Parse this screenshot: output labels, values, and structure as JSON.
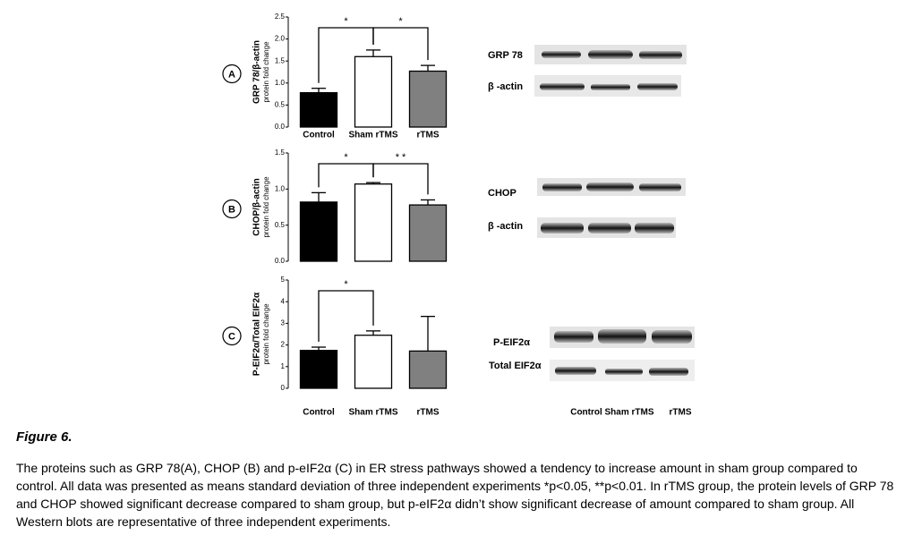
{
  "chart_data": [
    {
      "type": "bar",
      "panel": "A",
      "ylabel": "GRP 78/β-actin",
      "ylabel_sub": "protein fold change",
      "categories": [
        "Control",
        "Sham rTMS",
        "rTMS"
      ],
      "values": [
        0.78,
        1.6,
        1.27
      ],
      "errors": [
        0.1,
        0.15,
        0.13
      ],
      "colors": [
        "#000000",
        "#ffffff",
        "#808080"
      ],
      "ylim": [
        0,
        2.5
      ],
      "yticks": [
        {
          "value": 0,
          "label": "0.0"
        },
        0.5,
        {
          "value": 1,
          "label": "1.0"
        },
        1.5,
        {
          "value": 2,
          "label": "2.0"
        },
        2.5
      ],
      "annotations": [
        "*",
        "*"
      ]
    },
    {
      "type": "bar",
      "panel": "B",
      "ylabel": "CHOP/β-actin",
      "ylabel_sub": "protein fold change",
      "values": [
        0.82,
        1.07,
        0.78
      ],
      "errors": [
        0.13,
        0.02,
        0.07
      ],
      "colors": [
        "#000000",
        "#ffffff",
        "#808080"
      ],
      "ylim": [
        0,
        1.5
      ],
      "yticks": [
        {
          "value": 0,
          "label": "0.0"
        },
        0.5,
        {
          "value": 1,
          "label": "1.0"
        },
        1.5
      ],
      "annotations": [
        "*",
        "* *"
      ]
    },
    {
      "type": "bar",
      "panel": "C",
      "ylabel": "P-EIF2α/Total EIF2α",
      "ylabel_sub": "protein fold change",
      "categories": [
        "Control",
        "Sham rTMS",
        "rTMS"
      ],
      "values": [
        1.75,
        2.45,
        1.72
      ],
      "errors": [
        0.15,
        0.2,
        1.6
      ],
      "colors": [
        "#000000",
        "#ffffff",
        "#808080"
      ],
      "ylim": [
        0,
        5
      ],
      "yticks": [
        0,
        1,
        2,
        3,
        4,
        5
      ],
      "annotations": [
        "*"
      ]
    }
  ],
  "blots": {
    "rows": [
      "GRP 78",
      "β -actin",
      "CHOP",
      "β -actin",
      "P-EIF2α",
      "Total EIF2α"
    ],
    "lanes": [
      "Control",
      "Sham rTMS",
      "rTMS"
    ]
  },
  "figure": {
    "label": "Figure 6",
    "caption": "The proteins such as GRP 78(A), CHOP (B) and p-eIF2α (C) in ER stress pathways showed a tendency to increase amount in sham group compared to control. All data was presented as means standard deviation of three independent experiments *p<0.05, **p<0.01. In rTMS group, the protein levels of GRP 78 and CHOP showed significant decrease compared to sham group, but p-eIF2α didn’t show significant decrease of amount compared to sham group. All Western blots are representative of three independent experiments."
  }
}
